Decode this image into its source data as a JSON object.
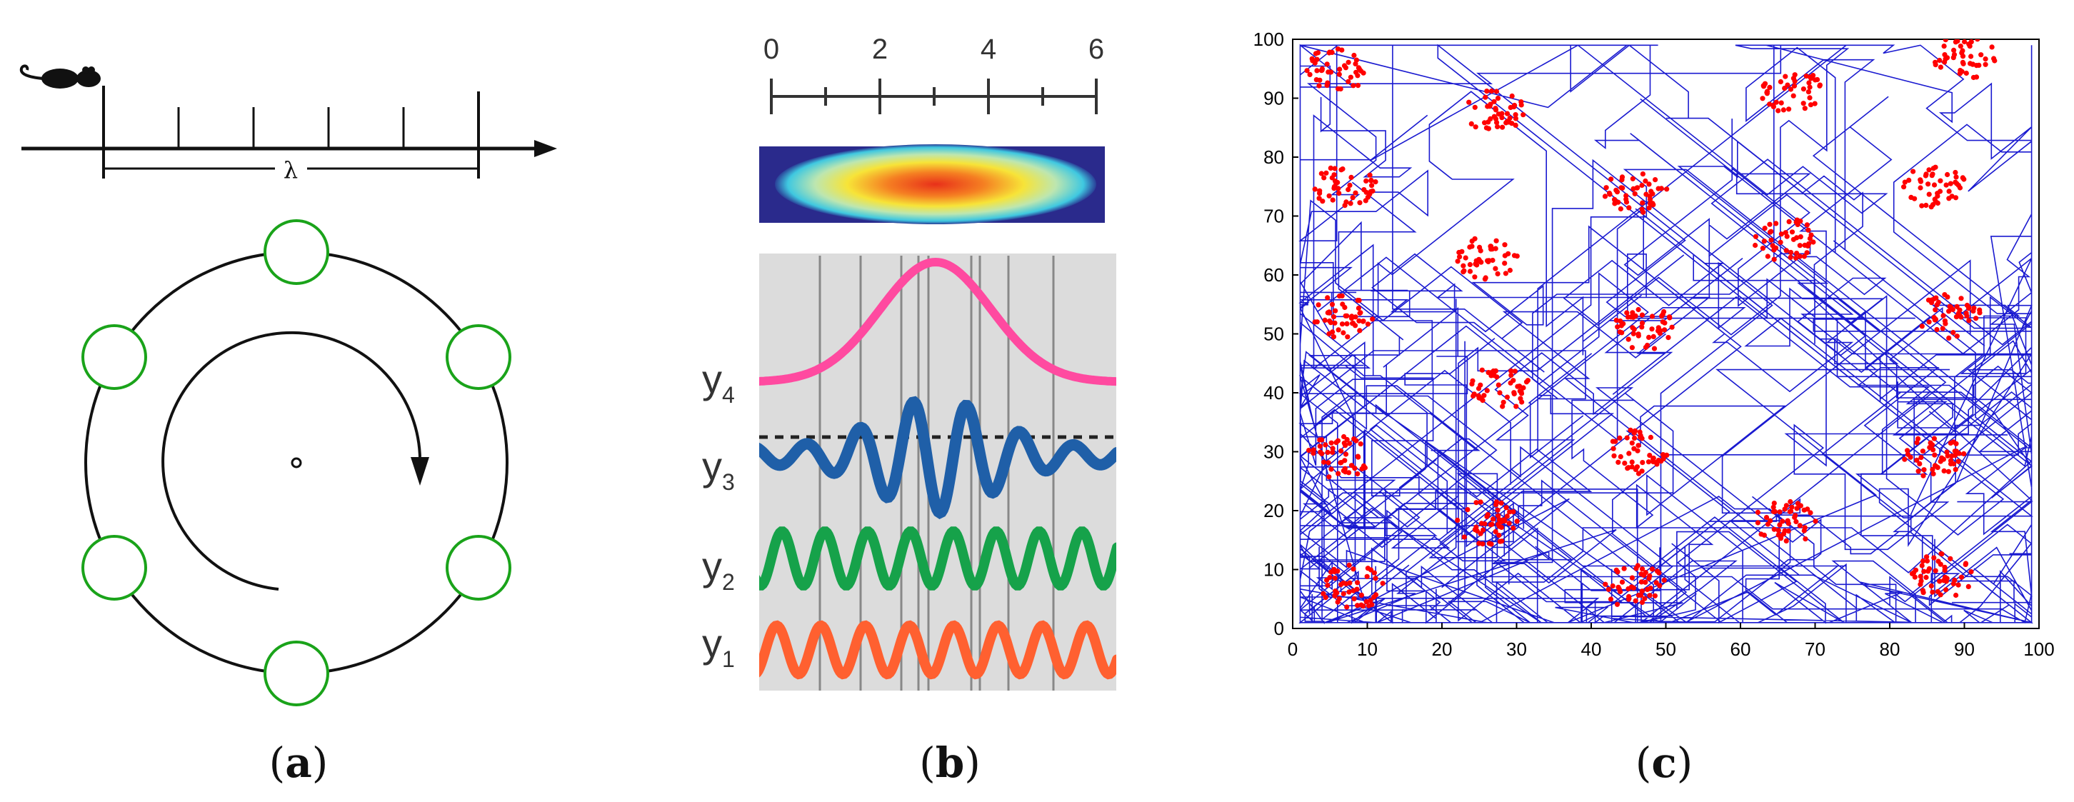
{
  "panels": {
    "a": {
      "label_open": "(",
      "label_letter": "a",
      "label_close": ")",
      "lambda_symbol": "λ",
      "ring_node_count": 6
    },
    "b": {
      "label_open": "(",
      "label_letter": "b",
      "label_close": ")",
      "scale_ticks": [
        "0",
        "2",
        "4",
        "6"
      ],
      "signal_labels": [
        {
          "base": "y",
          "sub": "4"
        },
        {
          "base": "y",
          "sub": "3"
        },
        {
          "base": "y",
          "sub": "2"
        },
        {
          "base": "y",
          "sub": "1"
        }
      ]
    },
    "c": {
      "label_open": "(",
      "label_letter": "c",
      "label_close": ")"
    }
  },
  "colors": {
    "ring_node": "#1aa31a",
    "gaussian_curve": "#ff4aa0",
    "y3_curve": "#1f5fa8",
    "y2_curve": "#16a24a",
    "y1_curve": "#ff6030",
    "trajectory": "#1a1ad0",
    "spikes": "#ff0000",
    "panel_bg": "#dcdcdc"
  },
  "chart_data": {
    "type": "scatter",
    "title": "",
    "xlabel": "",
    "ylabel": "",
    "xlim": [
      0,
      100
    ],
    "ylim": [
      0,
      100
    ],
    "xticks": [
      "0",
      "10",
      "20",
      "30",
      "40",
      "50",
      "60",
      "70",
      "80",
      "90",
      "100"
    ],
    "yticks": [
      "0",
      "10",
      "20",
      "30",
      "40",
      "50",
      "60",
      "70",
      "80",
      "90",
      "100"
    ],
    "grid": false,
    "series": [
      {
        "name": "trajectory",
        "kind": "line",
        "description_values": "random walk over arena"
      },
      {
        "name": "spike-fields",
        "kind": "points",
        "centers": [
          {
            "x": 6,
            "y": 95
          },
          {
            "x": 27,
            "y": 88
          },
          {
            "x": 67,
            "y": 91
          },
          {
            "x": 90,
            "y": 97
          },
          {
            "x": 7,
            "y": 75
          },
          {
            "x": 46,
            "y": 74
          },
          {
            "x": 86,
            "y": 75
          },
          {
            "x": 26,
            "y": 63
          },
          {
            "x": 66,
            "y": 66
          },
          {
            "x": 7,
            "y": 53
          },
          {
            "x": 47,
            "y": 51
          },
          {
            "x": 88,
            "y": 53
          },
          {
            "x": 28,
            "y": 41
          },
          {
            "x": 6,
            "y": 29
          },
          {
            "x": 46,
            "y": 30
          },
          {
            "x": 86,
            "y": 29
          },
          {
            "x": 26,
            "y": 18
          },
          {
            "x": 66,
            "y": 18
          },
          {
            "x": 8,
            "y": 7
          },
          {
            "x": 46,
            "y": 7
          },
          {
            "x": 87,
            "y": 9
          }
        ]
      }
    ]
  }
}
